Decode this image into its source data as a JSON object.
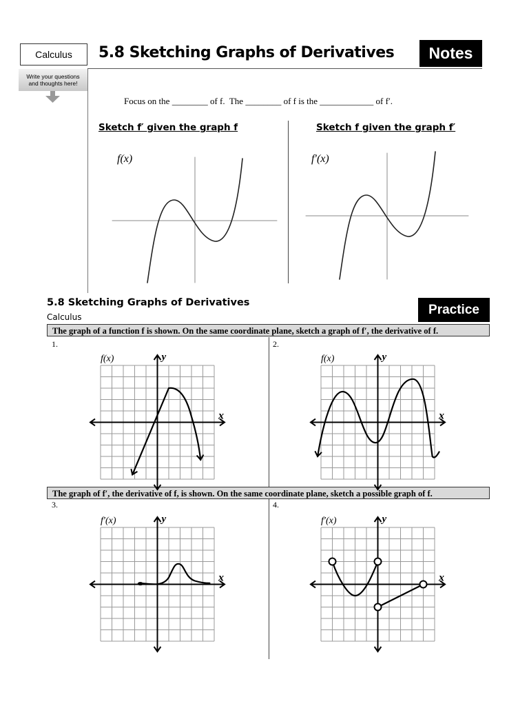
{
  "header": {
    "course_box": "Calculus",
    "title": "5.8 Sketching Graphs of Derivatives",
    "badge": "Notes",
    "callout_line1": "Write your questions",
    "callout_line2": "and thoughts here!"
  },
  "notes": {
    "focus_sentence": "Focus on the ________ of f.  The ________ of f is the ____________ of f′.",
    "left_heading": "Sketch f′ given the graph f",
    "right_heading": "Sketch f given the graph f′",
    "left_graph_label": "f(x)",
    "right_graph_label": "f′(x)"
  },
  "practice": {
    "title": "5.8 Sketching Graphs of Derivatives",
    "subtitle": "Calculus",
    "badge": "Practice",
    "instruction1": "The graph of a function f is shown. On the same coordinate plane, sketch a graph of f′, the derivative of f.",
    "instruction2": "The graph of f′, the derivative of f, is shown.  On the same coordinate plane, sketch a possible graph of f.",
    "problems": [
      {
        "number": "1.",
        "label": "f(x)"
      },
      {
        "number": "2.",
        "label": "f(x)"
      },
      {
        "number": "3.",
        "label": "f′(x)"
      },
      {
        "number": "4.",
        "label": "f′(x)"
      }
    ],
    "x_axis_label": "x",
    "y_axis_label": "y"
  }
}
